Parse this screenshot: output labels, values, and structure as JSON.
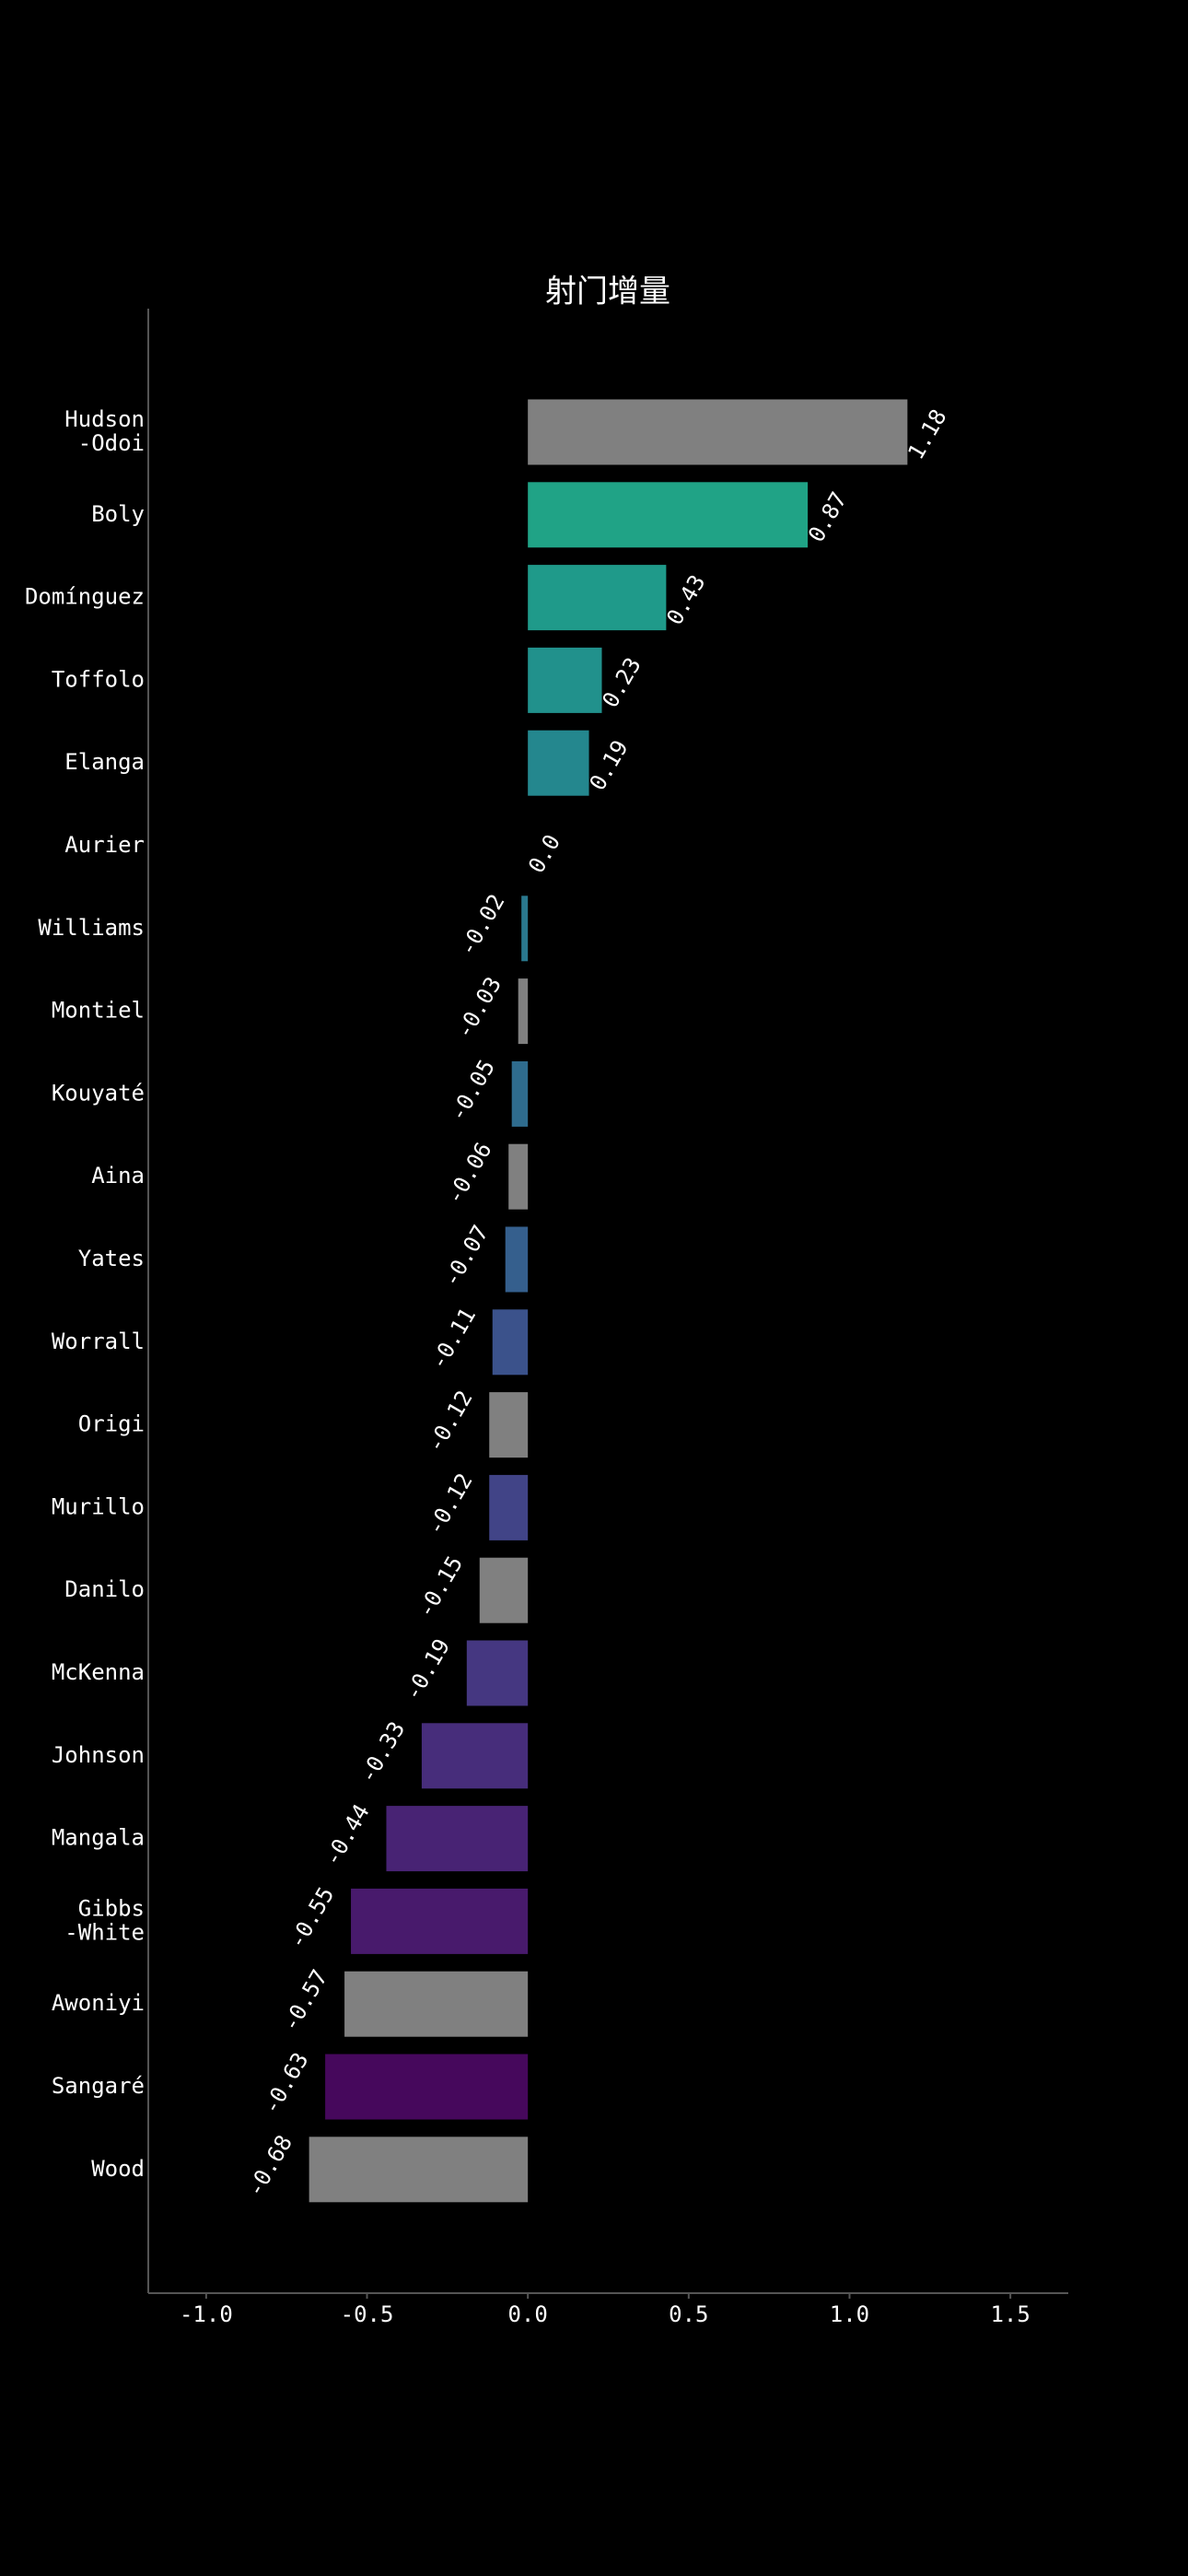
{
  "chart_data": {
    "type": "barh",
    "title": "射门增量",
    "categories": [
      "Hudson\n-Odoi",
      "Boly",
      "Domínguez",
      "Toffolo",
      "Elanga",
      "Aurier",
      "Williams",
      "Montiel",
      "Kouyaté",
      "Aina",
      "Yates",
      "Worrall",
      "Origi",
      "Murillo",
      "Danilo",
      "McKenna",
      "Johnson",
      "Mangala",
      "Gibbs\n-White",
      "Awoniyi",
      "Sangaré",
      "Wood"
    ],
    "values": [
      1.18,
      0.87,
      0.43,
      0.23,
      0.19,
      0,
      -0.02,
      -0.03,
      -0.05,
      -0.06,
      -0.07,
      -0.11,
      -0.12,
      -0.12,
      -0.15,
      -0.19,
      -0.33,
      -0.44,
      -0.55,
      -0.57,
      -0.63,
      -0.68
    ],
    "value_labels": [
      "1.18",
      "0.87",
      "0.43",
      "0.23",
      "0.19",
      "0.0",
      "-0.02",
      "-0.03",
      "-0.05",
      "-0.06",
      "-0.07",
      "-0.11",
      "-0.12",
      "-0.12",
      "-0.15",
      "-0.19",
      "-0.33",
      "-0.44",
      "-0.55",
      "-0.57",
      "-0.63",
      "-0.68"
    ],
    "colors": [
      "#808080",
      "#20a386",
      "#1f9a8a",
      "#21918c",
      "#24878e",
      "#277f8e",
      "#2a788e",
      "#808080",
      "#2f6c8e",
      "#808080",
      "#355f8d",
      "#3b528b",
      "#808080",
      "#414487",
      "#808080",
      "#453781",
      "#472d7b",
      "#482374",
      "#481a6c",
      "#808080",
      "#46085c",
      "#808080"
    ],
    "xlim": [
      -1.18,
      1.68
    ],
    "xticks": [
      {
        "value": -1.0,
        "label": "-1.0"
      },
      -0.5,
      {
        "value": 0,
        "label": "0.0"
      },
      0.5,
      {
        "value": 1.0,
        "label": "1.0"
      },
      1.5
    ]
  }
}
